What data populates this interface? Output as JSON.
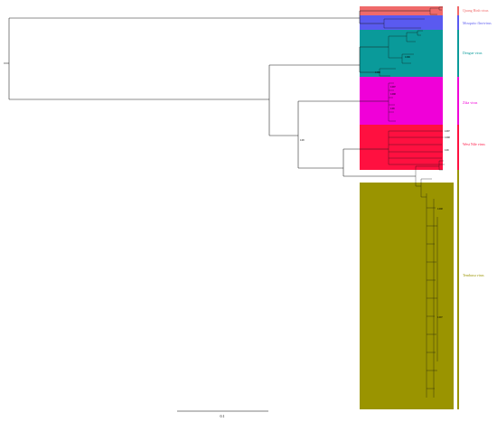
{
  "clades": [
    {
      "key": "quang-binh",
      "label": "Quang Binh virus",
      "color": "#f06a6a"
    },
    {
      "key": "mosquito-flavi",
      "label": "Mosquito flavivirus",
      "color": "#5a5af0"
    },
    {
      "key": "dengue",
      "label": "Dengue virus",
      "color": "#0a9a9a"
    },
    {
      "key": "zika",
      "label": "Zika virus",
      "color": "#f000d8"
    },
    {
      "key": "west-nile",
      "label": "West Nile virus",
      "color": "#ff1040"
    },
    {
      "key": "tembusu",
      "label": "Tembusu virus",
      "color": "#9a9400"
    }
  ],
  "scale_bar": {
    "label": "0.1"
  },
  "node_labels": {
    "root": "",
    "major": "0.98",
    "dengue_a": "0.996",
    "dengue_b": "0.998",
    "zika_a": "0.997",
    "zika_b": "0.998",
    "zika_c": "0.99",
    "wnv_a": "0.997",
    "wnv_b": "0.998",
    "wnv_c": "0.99",
    "tmuv_a": "0.998",
    "tmuv_b": "0.997"
  }
}
